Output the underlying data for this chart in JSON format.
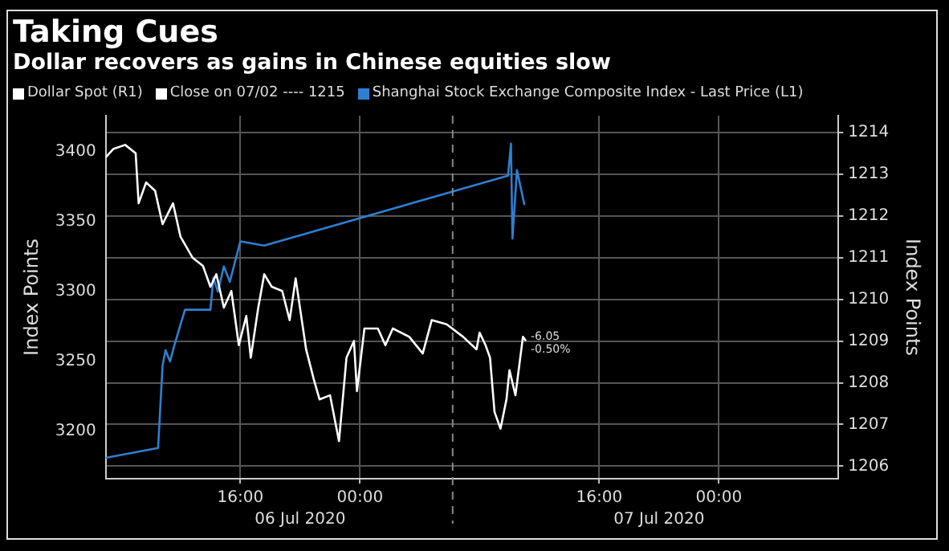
{
  "chart_data": {
    "type": "line",
    "title": "Taking Cues",
    "subtitle": "Dollar recovers as gains in Chinese equities slow",
    "ylabel": "Index Points",
    "y2label": "Index Points",
    "legend": "top left",
    "grid": true,
    "xlim": [
      "2020-07-06T07:00",
      "2020-07-08T08:00"
    ],
    "xticks": [
      {
        "value": "2020-07-06T16:00",
        "label": "16:00"
      },
      {
        "value": "2020-07-07T00:00",
        "label": "00:00"
      },
      {
        "value": "2020-07-07T16:00",
        "label": "16:00"
      },
      {
        "value": "2020-07-08T00:00",
        "label": "00:00"
      }
    ],
    "ylim": [
      3166,
      3426
    ],
    "yticks": [
      3200,
      3250,
      3300,
      3350,
      3400
    ],
    "y2lim": [
      1205.7,
      1214.4
    ],
    "y2ticks": [
      1206,
      1207,
      1208,
      1209,
      1210,
      1211,
      1212,
      1213,
      1214
    ],
    "series": [
      {
        "name": "Dollar Spot (R1)",
        "color": "#ffffff",
        "axis": "y2",
        "x": [
          "2020-07-06T07:00",
          "2020-07-06T07:30",
          "2020-07-06T08:18",
          "2020-07-06T09:00",
          "2020-07-06T09:12",
          "2020-07-06T09:42",
          "2020-07-06T10:18",
          "2020-07-06T10:48",
          "2020-07-06T11:30",
          "2020-07-06T12:00",
          "2020-07-06T12:48",
          "2020-07-06T13:30",
          "2020-07-06T14:00",
          "2020-07-06T14:24",
          "2020-07-06T14:54",
          "2020-07-06T15:24",
          "2020-07-06T15:54",
          "2020-07-06T16:24",
          "2020-07-06T16:42",
          "2020-07-06T17:12",
          "2020-07-06T17:36",
          "2020-07-06T18:06",
          "2020-07-06T18:48",
          "2020-07-06T19:18",
          "2020-07-06T19:42",
          "2020-07-06T20:24",
          "2020-07-06T20:54",
          "2020-07-06T21:18",
          "2020-07-06T22:00",
          "2020-07-06T22:36",
          "2020-07-06T23:06",
          "2020-07-06T23:36",
          "2020-07-06T23:48",
          "2020-07-07T00:18",
          "2020-07-07T01:12",
          "2020-07-07T01:42",
          "2020-07-07T02:12",
          "2020-07-07T03:18",
          "2020-07-07T04:12",
          "2020-07-07T04:48",
          "2020-07-07T05:48",
          "2020-07-07T06:54",
          "2020-07-07T07:48",
          "2020-07-07T08:00",
          "2020-07-07T08:24",
          "2020-07-07T08:42",
          "2020-07-07T09:00",
          "2020-07-07T09:24",
          "2020-07-07T09:48",
          "2020-07-07T10:00",
          "2020-07-07T10:24",
          "2020-07-07T10:54",
          "2020-07-07T11:06"
        ],
        "values": [
          1213.4,
          1213.6,
          1213.7,
          1213.5,
          1212.3,
          1212.8,
          1212.6,
          1211.8,
          1212.3,
          1211.5,
          1211.0,
          1210.8,
          1210.3,
          1210.6,
          1209.8,
          1210.2,
          1208.9,
          1209.6,
          1208.6,
          1209.8,
          1210.6,
          1210.3,
          1210.2,
          1209.5,
          1210.5,
          1208.8,
          1208.1,
          1207.6,
          1207.7,
          1206.6,
          1208.6,
          1209.0,
          1207.8,
          1209.3,
          1209.3,
          1208.9,
          1209.3,
          1209.1,
          1208.7,
          1209.5,
          1209.4,
          1209.1,
          1208.8,
          1209.2,
          1208.9,
          1208.6,
          1207.3,
          1206.9,
          1207.6,
          1208.3,
          1207.7,
          1209.1,
          1209.0
        ]
      },
      {
        "name": "Shanghai Stock Exchange Composite Index - Last Price (L1)",
        "color": "#2f7fd0",
        "axis": "y",
        "x": [
          "2020-07-06T07:00",
          "2020-07-06T10:30",
          "2020-07-06T10:48",
          "2020-07-06T11:00",
          "2020-07-06T11:18",
          "2020-07-06T11:36",
          "2020-07-06T12:18",
          "2020-07-06T14:00",
          "2020-07-06T14:12",
          "2020-07-06T14:30",
          "2020-07-06T14:54",
          "2020-07-06T15:18",
          "2020-07-06T16:00",
          "2020-07-06T17:36",
          "2020-07-07T09:54",
          "2020-07-07T10:06",
          "2020-07-07T10:12",
          "2020-07-07T10:30",
          "2020-07-07T11:00"
        ],
        "values": [
          3181,
          3188,
          3247,
          3258,
          3250,
          3262,
          3287,
          3287,
          3310,
          3300,
          3318,
          3307,
          3336,
          3333,
          3383,
          3406,
          3338,
          3387,
          3362
        ]
      }
    ],
    "ref_lines": [
      {
        "axis": "x",
        "value": "2020-07-07T06:12",
        "line_style": "dashed",
        "color": "#888888"
      }
    ],
    "annotations": [
      "Close on 07/02 ---- 1215",
      "-6.05 -0.50%",
      "06 Jul 2020",
      "07 Jul 2020"
    ]
  }
}
